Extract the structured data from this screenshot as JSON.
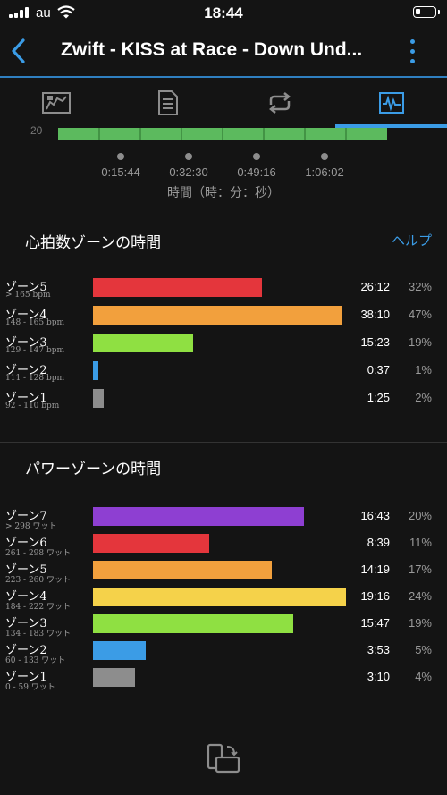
{
  "status": {
    "carrier": "au",
    "time": "18:44"
  },
  "nav": {
    "title": "Zwift - KISS at Race - Down Und..."
  },
  "tabs": [
    {
      "name": "map-tab-icon"
    },
    {
      "name": "details-tab-icon"
    },
    {
      "name": "laps-tab-icon"
    },
    {
      "name": "charts-tab-icon",
      "active": true
    }
  ],
  "chart_strip": {
    "y_label": "20",
    "ticks": [
      "0:15:44",
      "0:32:30",
      "0:49:16",
      "1:06:02"
    ],
    "axis_title": "時間（時：分：秒）"
  },
  "hr_section": {
    "title": "心拍数ゾーンの時間",
    "help": "ヘルプ",
    "zones": [
      {
        "name": "ゾーン5",
        "range": "> 165 bpm",
        "time": "26:12",
        "pct": "32%",
        "value": 32,
        "color": "#e4363c"
      },
      {
        "name": "ゾーン4",
        "range": "148 - 165 bpm",
        "time": "38:10",
        "pct": "47%",
        "value": 47,
        "color": "#f2a03d"
      },
      {
        "name": "ゾーン3",
        "range": "129 - 147 bpm",
        "time": "15:23",
        "pct": "19%",
        "value": 19,
        "color": "#8fe042"
      },
      {
        "name": "ゾーン2",
        "range": "111 - 128 bpm",
        "time": "0:37",
        "pct": "1%",
        "value": 1,
        "color": "#3b9ce6"
      },
      {
        "name": "ゾーン1",
        "range": "92 - 110 bpm",
        "time": "1:25",
        "pct": "2%",
        "value": 2,
        "color": "#8d8d8d"
      }
    ]
  },
  "power_section": {
    "title": "パワーゾーンの時間",
    "zones": [
      {
        "name": "ゾーン7",
        "range": "> 298 ワット",
        "time": "16:43",
        "pct": "20%",
        "value": 20,
        "color": "#8e3fd2"
      },
      {
        "name": "ゾーン6",
        "range": "261 - 298 ワット",
        "time": "8:39",
        "pct": "11%",
        "value": 11,
        "color": "#e4363c"
      },
      {
        "name": "ゾーン5",
        "range": "223 - 260 ワット",
        "time": "14:19",
        "pct": "17%",
        "value": 17,
        "color": "#f2a03d"
      },
      {
        "name": "ゾーン4",
        "range": "184 - 222 ワット",
        "time": "19:16",
        "pct": "24%",
        "value": 24,
        "color": "#f5d24a"
      },
      {
        "name": "ゾーン3",
        "range": "134 - 183 ワット",
        "time": "15:47",
        "pct": "19%",
        "value": 19,
        "color": "#8fe042"
      },
      {
        "name": "ゾーン2",
        "range": "60 - 133 ワット",
        "time": "3:53",
        "pct": "5%",
        "value": 5,
        "color": "#3b9ce6"
      },
      {
        "name": "ゾーン1",
        "range": "0 - 59 ワット",
        "time": "3:10",
        "pct": "4%",
        "value": 4,
        "color": "#8d8d8d"
      }
    ]
  }
}
